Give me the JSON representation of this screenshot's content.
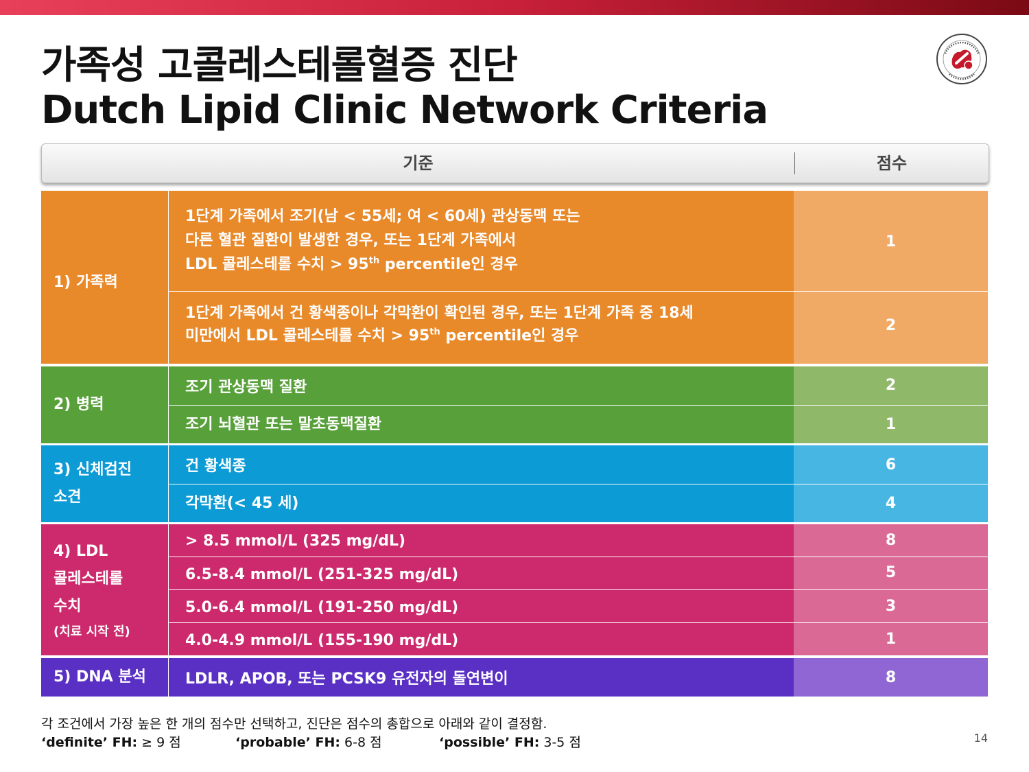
{
  "title": {
    "line1": "가족성 고콜레스테롤혈증 진단",
    "line2": "Dutch Lipid Clinic Network Criteria"
  },
  "logo": {
    "icon": "ksola-society-seal-icon",
    "text": "The Korean Society of Lipid and Atherosclerosis · KSoLA"
  },
  "table": {
    "header": {
      "criteria": "기준",
      "score": "점수"
    },
    "groups": [
      {
        "label": "1) 가족력",
        "color": "#e8892a",
        "rows": [
          {
            "lines": [
              "1단계 가족에서 조기(남 < 55세; 여 < 60세) 관상동맥 또는",
              "다른 혈관 질환이 발생한 경우, 또는 1단계 가족에서"
            ],
            "line3_pre": "LDL 콜레스테롤 수치 > 95",
            "line3_sup": "th",
            "line3_post": " percentile인 경우",
            "score": "1"
          },
          {
            "line1": "1단계 가족에서 건 황색종이나 각막환이 확인된 경우, 또는  1단계 가족 중 18세",
            "line2_pre": "미만에서 LDL 콜레스테롤 수치 > 95",
            "line2_sup": "th",
            "line2_post": " percentile인 경우",
            "score": "2"
          }
        ]
      },
      {
        "label": "2) 병력",
        "color": "#58a03a",
        "rows": [
          {
            "text": "조기 관상동맥 질환",
            "score": "2"
          },
          {
            "text": "조기 뇌혈관 또는 말초동맥질환",
            "score": "1"
          }
        ]
      },
      {
        "label_lines": [
          "3) 신체검진",
          "소견"
        ],
        "color": "#0d9bd6",
        "rows": [
          {
            "text": "건 황색종",
            "score": "6"
          },
          {
            "text": "각막환(< 45 세)",
            "score": "4"
          }
        ]
      },
      {
        "label_lines": [
          "4) LDL",
          "콜레스테롤",
          "수치"
        ],
        "label_note": "(치료 시작 전)",
        "color": "#cc2a6c",
        "rows": [
          {
            "text": "> 8.5 mmol/L (325 mg/dL)",
            "score": "8"
          },
          {
            "text": "6.5-8.4 mmol/L (251-325 mg/dL)",
            "score": "5"
          },
          {
            "text": "5.0-6.4 mmol/L (191-250 mg/dL)",
            "score": "3"
          },
          {
            "text": "4.0-4.9 mmol/L (155-190 mg/dL)",
            "score": "1"
          }
        ]
      },
      {
        "label": "5) DNA 분석",
        "color": "#5a30c4",
        "rows": [
          {
            "text": "LDLR, APOB, 또는 PCSK9 유전자의 돌연변이",
            "score": "8"
          }
        ]
      }
    ]
  },
  "footer": {
    "note": "각 조건에서 가장 높은 한 개의 점수만 선택하고, 진단은 점수의 총합으로 아래와 같이 결정함.",
    "definite_label": "‘definite’ FH:",
    "definite_value": " ≥ 9 점",
    "probable_label": "‘probable’ FH:",
    "probable_value": " 6-8 점",
    "possible_label": "‘possible’ FH:",
    "possible_value": " 3-5 점"
  },
  "page_number": "14"
}
